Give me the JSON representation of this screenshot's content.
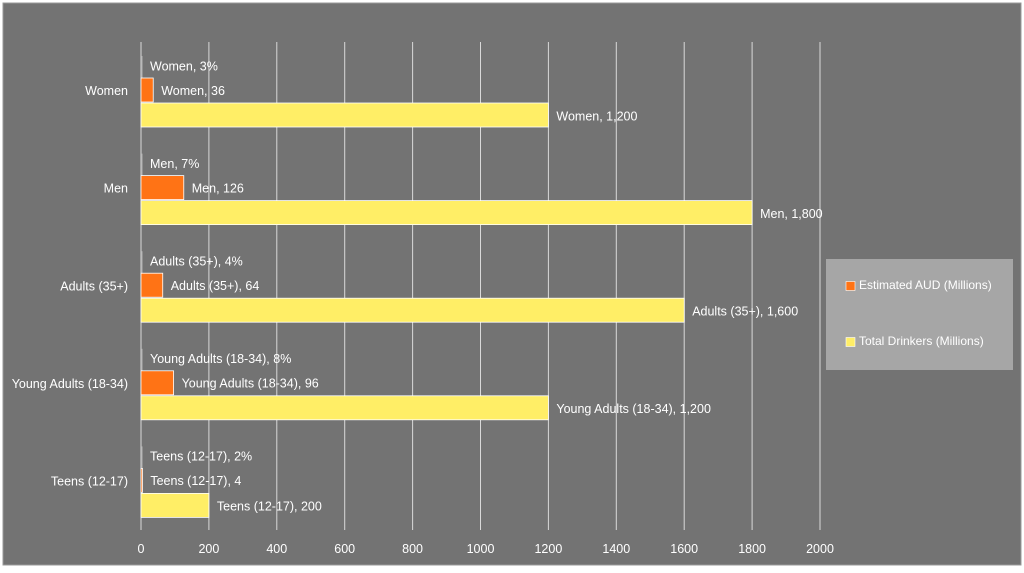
{
  "colors": {
    "background": "#737373",
    "gridline": "#d9d9d9",
    "text": "#ffffff",
    "estimated_aud": "#ff7315",
    "total_drinkers": "#ffee66",
    "percent_marker": "#bfbfbf",
    "legend_box": "#a6a6a6"
  },
  "chart_data": {
    "type": "bar",
    "orientation": "horizontal",
    "title": "",
    "xlabel": "",
    "ylabel": "",
    "xlim": [
      0,
      2000
    ],
    "xticks": [
      0,
      200,
      400,
      600,
      800,
      1000,
      1200,
      1400,
      1600,
      1800,
      2000
    ],
    "grid": true,
    "legend_position": "right",
    "categories": [
      "Women",
      "Men",
      "Adults (35+)",
      "Young Adults (18-34)",
      "Teens (12-17)"
    ],
    "series": [
      {
        "name": "",
        "in_legend": false,
        "values": [
          3,
          7,
          4,
          8,
          2
        ],
        "labels": [
          "Women, 3%",
          "Men, 7%",
          "Adults (35+), 4%",
          "Young Adults (18-34), 8%",
          "Teens (12-17), 2%"
        ],
        "color": "#bfbfbf"
      },
      {
        "name": "Estimated AUD (Millions)",
        "in_legend": true,
        "values": [
          36,
          126,
          64,
          96,
          4
        ],
        "labels": [
          "Women, 36",
          "Men, 126",
          "Adults (35+), 64",
          "Young Adults (18-34), 96",
          "Teens (12-17), 4"
        ],
        "color": "#ff7315"
      },
      {
        "name": "Total Drinkers (Millions)",
        "in_legend": true,
        "values": [
          1200,
          1800,
          1600,
          1200,
          200
        ],
        "labels": [
          "Women, 1,200",
          "Men, 1,800",
          "Adults (35+), 1,600",
          "Young Adults (18-34), 1,200",
          "Teens (12-17), 200"
        ],
        "color": "#ffee66"
      }
    ]
  }
}
